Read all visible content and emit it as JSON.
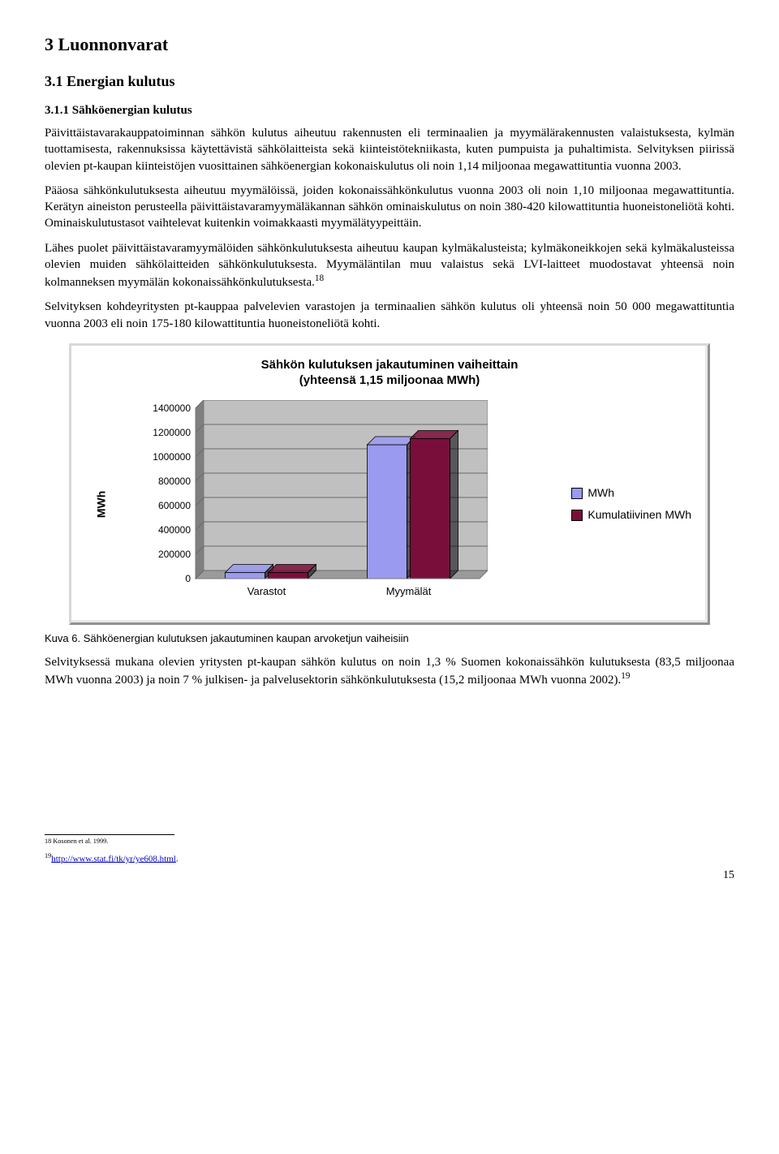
{
  "headings": {
    "h1": "3  Luonnonvarat",
    "h2": "3.1  Energian kulutus",
    "h3": "3.1.1  Sähköenergian kulutus"
  },
  "paragraphs": {
    "p1": "Päivittäistavarakauppatoiminnan sähkön kulutus aiheutuu rakennusten eli terminaalien ja myymälärakennusten valaistuksesta, kylmän tuottamisesta, rakennuksissa käytettävistä sähkölaitteista sekä kiinteistötekniikasta, kuten pumpuista ja puhaltimista. Selvityksen piirissä olevien pt-kaupan kiinteistöjen vuosittainen sähköenergian kokonaiskulutus oli noin 1,14 miljoonaa megawattituntia vuonna 2003.",
    "p2": "Pääosa sähkönkulutuksesta aiheutuu myymälöissä, joiden kokonaissähkönkulutus vuonna 2003 oli noin 1,10 miljoonaa megawattituntia. Kerätyn aineiston perusteella päivittäistavaramyymäläkannan sähkön ominaiskulutus on noin 380-420 kilowattituntia huoneistoneliötä kohti. Ominaiskulutustasot vaihtelevat kuitenkin voimakkaasti myymälätyypeittäin.",
    "p3a": "Lähes puolet päivittäistavaramyymälöiden sähkönkulutuksesta aiheutuu kaupan kylmäkalusteista; kylmäkoneikkojen sekä kylmäkalusteissa olevien muiden sähkölaitteiden sähkönkulutuksesta. Myymäläntilan muu valaistus sekä LVI-laitteet muodostavat yhteensä noin kolmanneksen myymälän kokonaissähkönkulutuksesta.",
    "p3_ref": "18",
    "p4": "Selvityksen kohdeyritysten pt-kauppaa palvelevien varastojen ja terminaalien sähkön kulutus oli yhteensä noin 50 000 megawattituntia vuonna 2003 eli noin 175-180 kilowattituntia huoneistoneliötä kohti.",
    "p5a": "Selvityksessä mukana olevien yritysten pt-kaupan sähkön kulutus on noin 1,3 % Suomen kokonaissähkön kulutuksesta (83,5 miljoonaa MWh vuonna 2003) ja noin 7 % julkisen- ja palvelusektorin sähkönkulutuksesta (15,2 miljoonaa MWh vuonna 2002).",
    "p5_ref": "19"
  },
  "chart": {
    "title_line1": "Sähkön kulutuksen jakautuminen vaiheittain",
    "title_line2": "(yhteensä 1,15 miljoonaa MWh)",
    "type": "bar",
    "ylabel": "MWh",
    "ylim": [
      0,
      1400000
    ],
    "ytick_step": 200000,
    "yticks": [
      "0",
      "200000",
      "400000",
      "600000",
      "800000",
      "1000000",
      "1200000",
      "1400000"
    ],
    "categories": [
      "Varastot",
      "Myymälät"
    ],
    "series": [
      {
        "name": "MWh",
        "color": "#9a9af0",
        "values": [
          50000,
          1100000
        ]
      },
      {
        "name": "Kumulatiivinen MWh",
        "color": "#7a0e3a",
        "values": [
          50000,
          1150000
        ]
      }
    ],
    "plot_bg": "#c0c0c0",
    "plot_border": "#7a7a7a",
    "grid_color": "#6a6a6a",
    "side_wall": "#7f7f7f",
    "floor": "#9a9a9a",
    "bar_depth_shade": "#000000"
  },
  "caption": "Kuva 6. Sähköenergian kulutuksen jakautuminen kaupan arvoketjun vaiheisiin",
  "footnotes": {
    "f18": "18 Kosonen et al. 1999.",
    "f19_prefix": "19",
    "f19_link": "http://www.stat.fi/tk/yr/ye608.html",
    "f19_suffix": "."
  },
  "pagenum": "15"
}
